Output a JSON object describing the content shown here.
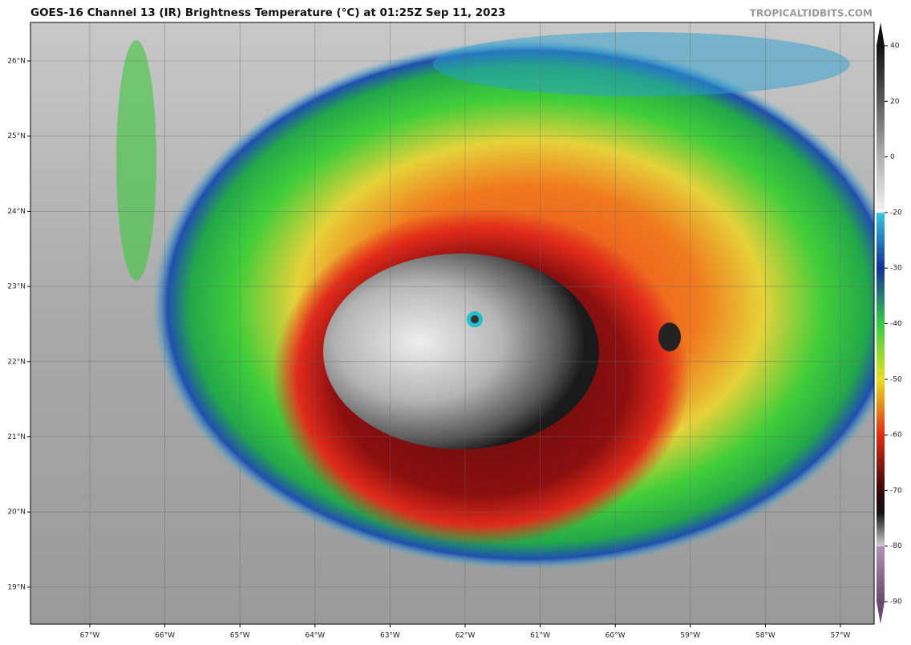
{
  "header": {
    "title": "GOES-16 Channel 13 (IR) Brightness Temperature (°C) at 01:25Z Sep 11, 2023",
    "source": "TROPICALTIDBITS.COM"
  },
  "map": {
    "lon_labels": [
      "67°W",
      "66°W",
      "65°W",
      "64°W",
      "63°W",
      "62°W",
      "61°W",
      "60°W",
      "59°W",
      "58°W",
      "57°W"
    ],
    "lat_labels": [
      "26°N",
      "25°N",
      "24°N",
      "23°N",
      "22°N",
      "21°N",
      "20°N",
      "19°N"
    ]
  },
  "colorbar": {
    "ticks": [
      40,
      20,
      0,
      -20,
      -30,
      -40,
      -50,
      -60,
      -70,
      -80,
      -90
    ]
  }
}
